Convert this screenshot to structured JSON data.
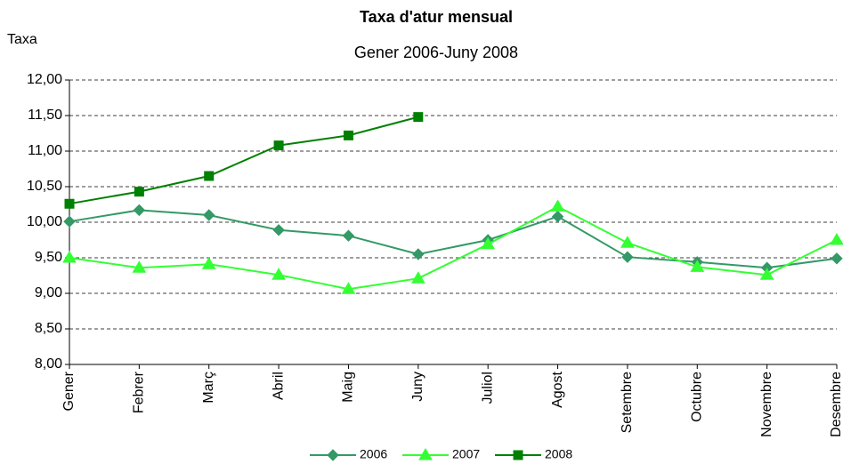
{
  "chart_data": {
    "type": "line",
    "title": "Taxa d'atur mensual",
    "subtitle": "Gener 2006-Juny 2008",
    "y_label": "Taxa",
    "categories": [
      "Gener",
      "Febrer",
      "Març",
      "Abril",
      "Maig",
      "Juny",
      "Juliol",
      "Agost",
      "Setembre",
      "Octubre",
      "Novembre",
      "Desembre"
    ],
    "series": [
      {
        "name": "2006",
        "color": "#339966",
        "marker": "diamond",
        "values": [
          10.01,
          10.17,
          10.1,
          9.89,
          9.81,
          9.55,
          9.75,
          10.08,
          9.51,
          9.44,
          9.36,
          9.49
        ]
      },
      {
        "name": "2007",
        "color": "#33ff33",
        "marker": "triangle",
        "values": [
          9.5,
          9.36,
          9.41,
          9.26,
          9.06,
          9.21,
          9.69,
          10.22,
          9.71,
          9.37,
          9.26,
          9.75
        ]
      },
      {
        "name": "2008",
        "color": "#008000",
        "marker": "square",
        "values": [
          10.26,
          10.43,
          10.65,
          11.08,
          11.22,
          11.48,
          null,
          null,
          null,
          null,
          null,
          null
        ]
      }
    ],
    "ylim": [
      8,
      12
    ],
    "yticks": [
      {
        "value": 8,
        "label": "8,00"
      },
      {
        "value": 8.5,
        "label": "8,50"
      },
      {
        "value": 9,
        "label": "9,00"
      },
      {
        "value": 9.5,
        "label": "9,50"
      },
      {
        "value": 10,
        "label": "10,00"
      },
      {
        "value": 10.5,
        "label": "10,50"
      },
      {
        "value": 11,
        "label": "11,00"
      },
      {
        "value": 11.5,
        "label": "11,50"
      },
      {
        "value": 12,
        "label": "12,00"
      }
    ],
    "grid": true,
    "legend": "bottom"
  }
}
